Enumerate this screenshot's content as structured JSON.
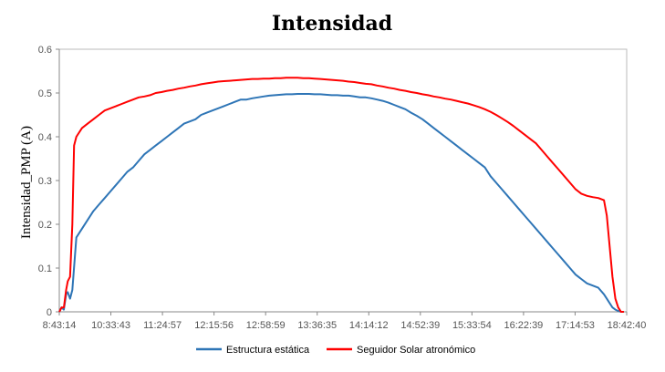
{
  "chart_data": {
    "type": "line",
    "title": "Intensidad",
    "xlabel": "",
    "ylabel": "Intensidad_PMP (A)",
    "x_ticks": [
      "8:43:14",
      "10:33:43",
      "11:24:57",
      "12:15:56",
      "12:58:59",
      "13:36:35",
      "14:14:12",
      "14:52:39",
      "15:33:54",
      "16:22:39",
      "17:14:53",
      "18:42:40"
    ],
    "ylim": [
      0,
      0.6
    ],
    "y_ticks": [
      0,
      0.1,
      0.2,
      0.3,
      0.4,
      0.5,
      0.6
    ],
    "grid": false,
    "legend_position": "bottom",
    "series": [
      {
        "name": "Estructura estática",
        "color": "#2e75b6",
        "x": [
          0,
          0.4,
          0.8,
          1.2,
          1.5,
          1.9,
          2.3,
          3,
          4,
          5,
          6,
          7,
          8,
          9,
          10,
          11,
          12,
          13,
          14,
          15,
          16,
          17,
          18,
          19,
          20,
          21,
          22,
          23,
          24,
          25,
          26,
          27,
          28,
          29,
          30,
          31,
          32,
          33,
          34,
          35,
          36,
          37,
          38,
          39,
          40,
          41,
          42,
          43,
          44,
          45,
          46,
          47,
          48,
          49,
          50,
          51,
          52,
          53,
          54,
          55,
          56,
          57,
          58,
          59,
          60,
          61,
          62,
          63,
          64,
          65,
          66,
          67,
          68,
          69,
          70,
          71,
          72,
          73,
          74,
          75,
          76,
          77,
          78,
          79,
          80,
          81,
          82,
          83,
          84,
          85,
          86,
          87,
          88,
          89,
          90,
          91,
          92,
          93,
          94,
          95,
          96,
          96.5,
          97,
          97.5,
          98,
          98.5,
          99,
          99.5
        ],
        "values": [
          0,
          0.01,
          0.005,
          0.04,
          0.045,
          0.03,
          0.05,
          0.17,
          0.19,
          0.21,
          0.23,
          0.245,
          0.26,
          0.275,
          0.29,
          0.305,
          0.32,
          0.33,
          0.345,
          0.36,
          0.37,
          0.38,
          0.39,
          0.4,
          0.41,
          0.42,
          0.43,
          0.435,
          0.44,
          0.45,
          0.455,
          0.46,
          0.465,
          0.47,
          0.475,
          0.48,
          0.485,
          0.485,
          0.488,
          0.49,
          0.492,
          0.494,
          0.495,
          0.496,
          0.497,
          0.497,
          0.498,
          0.498,
          0.498,
          0.497,
          0.497,
          0.496,
          0.495,
          0.495,
          0.494,
          0.494,
          0.492,
          0.49,
          0.49,
          0.488,
          0.485,
          0.482,
          0.478,
          0.473,
          0.468,
          0.463,
          0.455,
          0.448,
          0.44,
          0.43,
          0.42,
          0.41,
          0.4,
          0.39,
          0.38,
          0.37,
          0.36,
          0.35,
          0.34,
          0.33,
          0.31,
          0.295,
          0.28,
          0.265,
          0.25,
          0.235,
          0.22,
          0.205,
          0.19,
          0.175,
          0.16,
          0.145,
          0.13,
          0.115,
          0.1,
          0.085,
          0.075,
          0.065,
          0.06,
          0.055,
          0.04,
          0.03,
          0.02,
          0.01,
          0.005,
          0.002,
          0,
          0
        ]
      },
      {
        "name": "Seguidor Solar atronómico",
        "color": "#ff0000",
        "x": [
          0,
          0.4,
          0.8,
          1.2,
          1.5,
          1.9,
          2.3,
          2.6,
          3,
          4,
          5,
          6,
          7,
          8,
          9,
          10,
          11,
          12,
          13,
          14,
          15,
          16,
          17,
          18,
          19,
          20,
          21,
          22,
          23,
          24,
          25,
          26,
          27,
          28,
          29,
          30,
          31,
          32,
          33,
          34,
          35,
          36,
          37,
          38,
          39,
          40,
          41,
          42,
          43,
          44,
          45,
          46,
          47,
          48,
          49,
          50,
          51,
          52,
          53,
          54,
          55,
          56,
          57,
          58,
          59,
          60,
          61,
          62,
          63,
          64,
          65,
          66,
          67,
          68,
          69,
          70,
          71,
          72,
          73,
          74,
          75,
          76,
          77,
          78,
          79,
          80,
          81,
          82,
          83,
          84,
          85,
          86,
          87,
          88,
          89,
          90,
          91,
          92,
          93,
          94,
          95,
          96,
          96.5,
          97,
          97.5,
          98,
          98.5,
          99,
          99.5
        ],
        "values": [
          0,
          0.01,
          0.01,
          0.05,
          0.07,
          0.08,
          0.2,
          0.38,
          0.4,
          0.42,
          0.43,
          0.44,
          0.45,
          0.46,
          0.465,
          0.47,
          0.475,
          0.48,
          0.485,
          0.49,
          0.492,
          0.495,
          0.5,
          0.502,
          0.505,
          0.507,
          0.51,
          0.512,
          0.515,
          0.517,
          0.52,
          0.522,
          0.524,
          0.526,
          0.527,
          0.528,
          0.529,
          0.53,
          0.531,
          0.532,
          0.532,
          0.533,
          0.533,
          0.534,
          0.534,
          0.535,
          0.535,
          0.535,
          0.534,
          0.534,
          0.533,
          0.532,
          0.531,
          0.53,
          0.529,
          0.528,
          0.526,
          0.525,
          0.523,
          0.521,
          0.52,
          0.517,
          0.515,
          0.512,
          0.51,
          0.507,
          0.505,
          0.502,
          0.5,
          0.497,
          0.495,
          0.492,
          0.49,
          0.487,
          0.485,
          0.482,
          0.479,
          0.476,
          0.472,
          0.468,
          0.463,
          0.457,
          0.45,
          0.442,
          0.434,
          0.425,
          0.415,
          0.405,
          0.395,
          0.385,
          0.37,
          0.355,
          0.34,
          0.325,
          0.31,
          0.295,
          0.28,
          0.27,
          0.265,
          0.262,
          0.26,
          0.255,
          0.22,
          0.15,
          0.08,
          0.03,
          0.01,
          0,
          0
        ]
      }
    ]
  }
}
